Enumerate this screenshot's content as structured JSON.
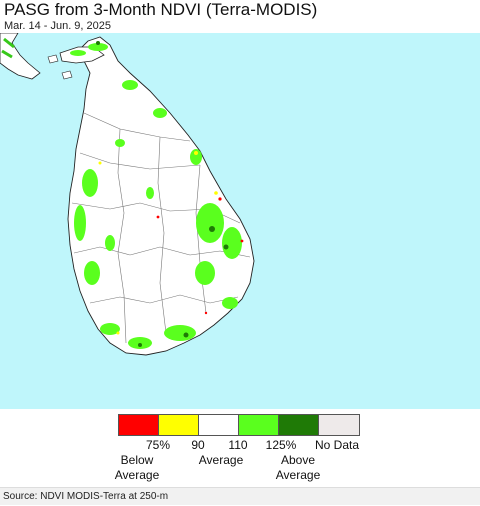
{
  "title": "PASG from 3-Month NDVI (Terra-MODIS)",
  "subtitle": "Mar. 14 - Jun. 9, 2025",
  "legend": {
    "colors": [
      "#ff0000",
      "#ffff00",
      "#ffffff",
      "#5aff1e",
      "#1f7a06",
      "#eeeaea"
    ],
    "ticks": [
      "75%",
      "90",
      "110",
      "125%"
    ],
    "no_data": "No Data",
    "below_line1": "Below",
    "below_line2": "Average",
    "average": "Average",
    "above_line1": "Above",
    "above_line2": "Average"
  },
  "source": "Source: NDVI MODIS-Terra at 250-m"
}
